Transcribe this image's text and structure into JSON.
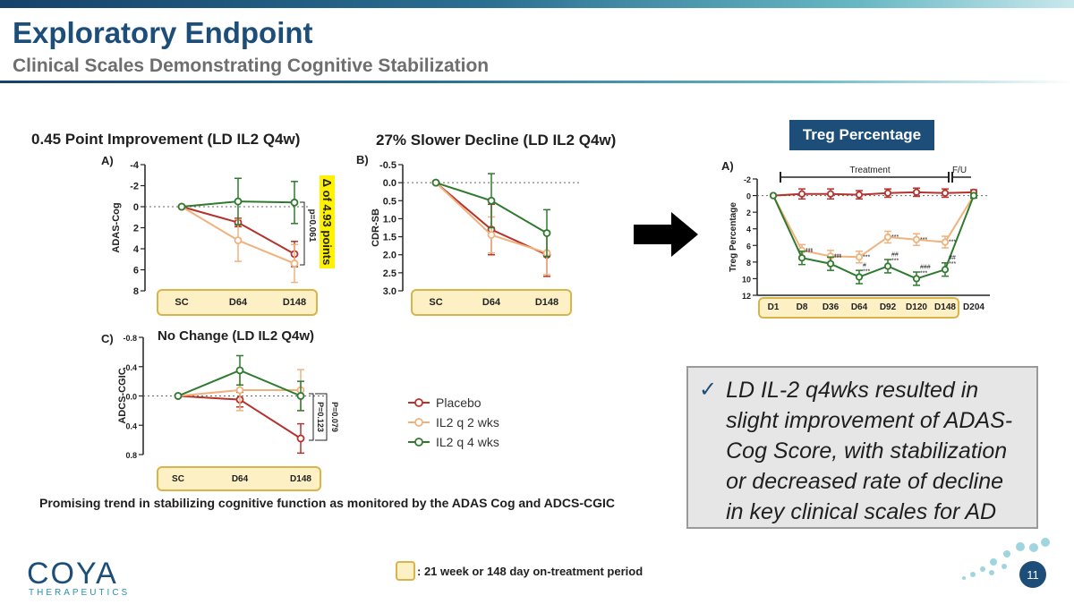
{
  "header": {
    "title": "Exploratory Endpoint",
    "subtitle": "Clinical Scales Demonstrating Cognitive Stabilization"
  },
  "panels": {
    "a_heading": "0.45 Point Improvement (LD IL2 Q4w)",
    "b_heading": "27% Slower Decline (LD IL2 Q4w)",
    "c_heading": "No Change (LD IL2 Q4w)",
    "a_delta_label": "Δ of 4.93 points",
    "a_pvalue": "p=0.061",
    "c_pvalue_1": "P=0.079",
    "c_pvalue_2": "P=0.123"
  },
  "legend": {
    "items": [
      {
        "label": "Placebo",
        "color": "#b5322e"
      },
      {
        "label": "IL2 q 2 wks",
        "color": "#f0b27d"
      },
      {
        "label": "IL2 q 4 wks",
        "color": "#2f7a2f"
      }
    ]
  },
  "treg_badge": "Treg Percentage",
  "callout": {
    "check": "✓",
    "text": "LD IL-2 q4wks resulted in slight improvement of ADAS-Cog Score, with stabilization or decreased rate of decline in key clinical scales for AD"
  },
  "footnote": "Promising trend in stabilizing cognitive function as monitored by the ADAS Cog and ADCS-CGIC",
  "key_text": ": 21 week or 148 day on-treatment period",
  "logo": {
    "main": "COYA",
    "sub": "THERAPEUTICS"
  },
  "page_number": "11",
  "chart_data": [
    {
      "type": "line",
      "panel_label": "A)",
      "ylabel": "ADAS-Cog",
      "categories": [
        "SC",
        "D64",
        "D148"
      ],
      "ylim": [
        -4,
        8
      ],
      "y_inverted": true,
      "y_ticks": [
        "-4",
        "-2",
        "0",
        "2",
        "4",
        "6",
        "8"
      ],
      "series": [
        {
          "name": "Placebo",
          "color": "#b5322e",
          "values": [
            0,
            1.5,
            4.5
          ],
          "err": [
            0,
            0.4,
            1.2
          ]
        },
        {
          "name": "IL2 q 2 wks",
          "color": "#f0b27d",
          "values": [
            0,
            3.2,
            5.4
          ],
          "err": [
            0,
            2.0,
            1.8
          ]
        },
        {
          "name": "IL2 q 4 wks",
          "color": "#2f7a2f",
          "values": [
            0,
            -0.5,
            -0.4
          ],
          "err": [
            0,
            2.2,
            2.0
          ]
        }
      ]
    },
    {
      "type": "line",
      "panel_label": "B)",
      "ylabel": "CDR-SB",
      "categories": [
        "SC",
        "D64",
        "D148"
      ],
      "ylim": [
        -0.5,
        3.0
      ],
      "y_inverted": true,
      "y_ticks": [
        "-0.5",
        "0.0",
        "0.5",
        "1.0",
        "1.5",
        "2.0",
        "2.5",
        "3.0"
      ],
      "series": [
        {
          "name": "Placebo",
          "color": "#b5322e",
          "values": [
            0,
            1.3,
            2.0
          ],
          "err": [
            0,
            0.7,
            0.6
          ]
        },
        {
          "name": "IL2 q 2 wks",
          "color": "#f0b27d",
          "values": [
            0,
            1.45,
            1.95
          ],
          "err": [
            0,
            0.5,
            0.6
          ]
        },
        {
          "name": "IL2 q 4 wks",
          "color": "#2f7a2f",
          "values": [
            0,
            0.5,
            1.4
          ],
          "err": [
            0,
            0.75,
            0.65
          ]
        }
      ]
    },
    {
      "type": "line",
      "panel_label": "C)",
      "ylabel": "ADCS-CGIC",
      "categories": [
        "SC",
        "D64",
        "D148"
      ],
      "ylim": [
        -0.8,
        0.8
      ],
      "y_inverted": true,
      "y_ticks": [
        "-0.8",
        "-0.4",
        "0.0",
        "0.4",
        "0.8"
      ],
      "series": [
        {
          "name": "Placebo",
          "color": "#b5322e",
          "values": [
            0,
            0.05,
            0.58
          ],
          "err": [
            0,
            0.1,
            0.2
          ]
        },
        {
          "name": "IL2 q 2 wks",
          "color": "#f0b27d",
          "values": [
            0,
            -0.08,
            -0.08
          ],
          "err": [
            0,
            0.28,
            0.28
          ]
        },
        {
          "name": "IL2 q 4 wks",
          "color": "#2f7a2f",
          "values": [
            0,
            -0.35,
            0.0
          ],
          "err": [
            0,
            0.2,
            0.2
          ]
        }
      ]
    },
    {
      "type": "line",
      "panel_label": "A)",
      "ylabel": "Treg Percentage",
      "categories": [
        "D1",
        "D8",
        "D36",
        "D64",
        "D92",
        "D120",
        "D148",
        "D204"
      ],
      "ylim": [
        -2,
        12
      ],
      "y_ticks": [
        "-2",
        "0",
        "2",
        "4",
        "6",
        "8",
        "10",
        "12"
      ],
      "treatment_label": "Treatment",
      "followup_label": "F/U",
      "series": [
        {
          "name": "Placebo",
          "color": "#b5322e",
          "values": [
            0,
            -0.2,
            -0.2,
            -0.1,
            -0.3,
            -0.4,
            -0.3,
            -0.4
          ],
          "err": [
            0,
            0.6,
            0.6,
            0.5,
            0.5,
            0.5,
            0.5,
            0.3
          ]
        },
        {
          "name": "IL2 q 2 wks",
          "color": "#f0b27d",
          "values": [
            0,
            6.6,
            7.3,
            7.4,
            5.0,
            5.3,
            5.6,
            0
          ],
          "err": [
            0,
            0.7,
            0.7,
            0.7,
            0.7,
            0.7,
            0.7,
            0.3
          ]
        },
        {
          "name": "IL2 q 4 wks",
          "color": "#2f7a2f",
          "values": [
            0,
            7.5,
            8.2,
            9.8,
            8.5,
            10.0,
            8.9,
            0
          ],
          "err": [
            0,
            0.8,
            0.8,
            0.8,
            0.8,
            0.8,
            0.8,
            0.3
          ]
        }
      ],
      "annotations_g4": [
        "",
        "***",
        "***",
        "#\n***",
        "##\n***",
        "###\n***",
        "##\n***",
        ""
      ],
      "annotations_g2": [
        "",
        "***",
        "***",
        "***",
        "***",
        "***",
        "***",
        ""
      ]
    }
  ]
}
